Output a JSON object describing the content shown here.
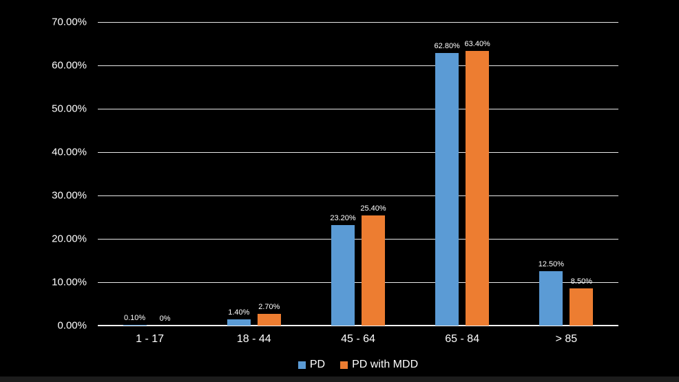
{
  "chart_data": {
    "type": "bar",
    "title": "",
    "xlabel": "",
    "ylabel": "",
    "categories": [
      "1 - 17",
      "18 - 44",
      "45 - 64",
      "65 - 84",
      "> 85"
    ],
    "series": [
      {
        "name": "PD",
        "color": "#5B9BD5",
        "values": [
          0.1,
          1.4,
          23.2,
          62.8,
          12.5
        ],
        "labels": [
          "0.10%",
          "1.40%",
          "23.20%",
          "62.80%",
          "12.50%"
        ]
      },
      {
        "name": "PD with MDD",
        "color": "#ED7D31",
        "values": [
          0,
          2.7,
          25.4,
          63.4,
          8.5
        ],
        "labels": [
          "0%",
          "2.70%",
          "25.40%",
          "63.40%",
          "8.50%"
        ]
      }
    ],
    "y_axis": {
      "min": 0,
      "max": 70,
      "step": 10,
      "tick_labels": [
        "0.00%",
        "10.00%",
        "20.00%",
        "30.00%",
        "40.00%",
        "50.00%",
        "60.00%",
        "70.00%"
      ]
    },
    "grid": "horizontal",
    "legend_position": "bottom",
    "colors": {
      "background": "#000000",
      "gridline": "#e9e9e9",
      "axis": "#f5f5f5",
      "text": "#ffffff"
    }
  },
  "legend": {
    "pd_label": "PD",
    "pd_mdd_label": "PD with MDD"
  }
}
